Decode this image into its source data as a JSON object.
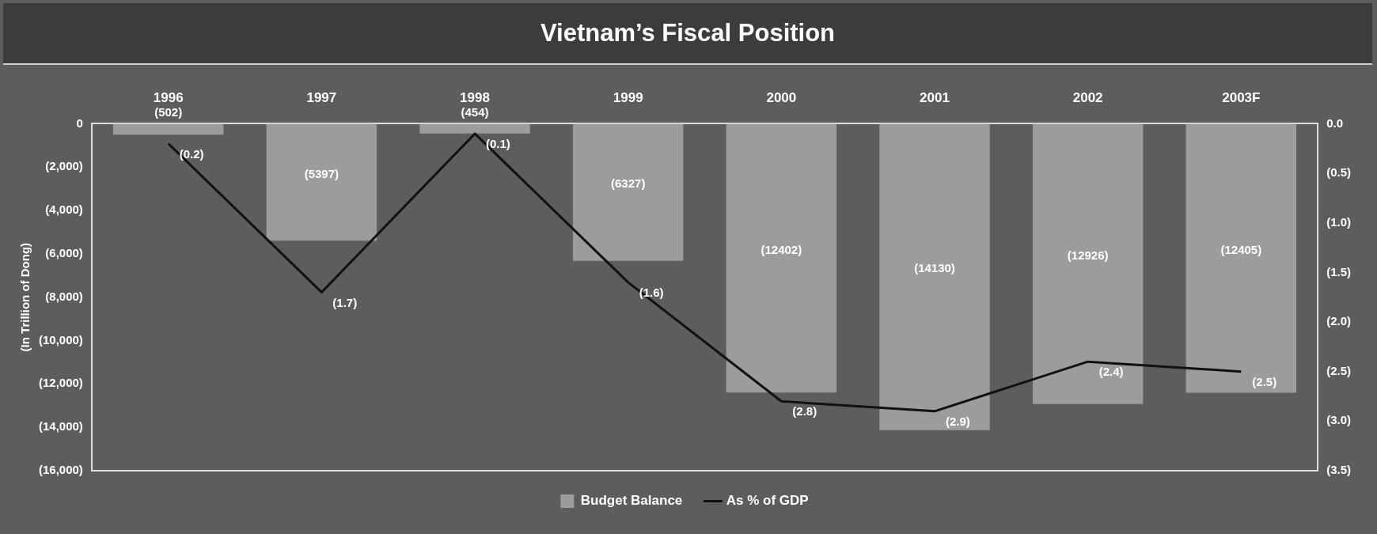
{
  "chart_data": {
    "type": "bar",
    "title": "Vietnam’s Fiscal Position",
    "ylabel": "(In Trillion of Dong)",
    "categories": [
      "1996",
      "1997",
      "1998",
      "1999",
      "2000",
      "2001",
      "2002",
      "2003F"
    ],
    "series": [
      {
        "name": "Budget Balance",
        "color": "#9c9c9c",
        "values": [
          -502,
          -5397,
          -454,
          -6327,
          -12402,
          -14130,
          -12926,
          -12405
        ],
        "value_labels": [
          "(502)",
          "(5397)",
          "(454)",
          "(6327)",
          "(12402)",
          "(14130)",
          "(12926)",
          "(12405)"
        ]
      },
      {
        "name": "As % of GDP",
        "type": "line",
        "axis": "y2",
        "color": "#111111",
        "values": [
          -0.2,
          -1.7,
          -0.1,
          -1.6,
          -2.8,
          -2.9,
          -2.4,
          -2.5
        ],
        "value_labels": [
          "(0.2)",
          "(1.7)",
          "(0.1)",
          "(1.6)",
          "(2.8)",
          "(2.9)",
          "(2.4)",
          "(2.5)"
        ]
      }
    ],
    "ylim": [
      -16000,
      0
    ],
    "yticks": [
      {
        "value": -16000,
        "label": "(16,000)"
      },
      {
        "value": -14000,
        "label": "(14,000)"
      },
      {
        "value": -12000,
        "label": "(12,000)"
      },
      {
        "value": -10000,
        "label": "(10,000)"
      },
      {
        "value": -8000,
        "label": "(8,000)"
      },
      {
        "value": -6000,
        "label": "(6,000)"
      },
      {
        "value": -4000,
        "label": "(4,000)"
      },
      {
        "value": -2000,
        "label": "(2,000)"
      },
      0
    ],
    "y2lim": [
      -3.5,
      0
    ],
    "y2ticks": [
      {
        "value": -3.5,
        "label": "(3.5)"
      },
      {
        "value": -3,
        "label": "(3.0)"
      },
      {
        "value": -2.5,
        "label": "(2.5)"
      },
      {
        "value": -2,
        "label": "(2.0)"
      },
      {
        "value": -1.5,
        "label": "(1.5)"
      },
      {
        "value": -1,
        "label": "(1.0)"
      },
      {
        "value": -0.5,
        "label": "(0.5)"
      },
      {
        "value": 0,
        "label": "0.0"
      }
    ],
    "grid": false,
    "legend": "bottom",
    "marker": "none",
    "line_style": "solid"
  }
}
